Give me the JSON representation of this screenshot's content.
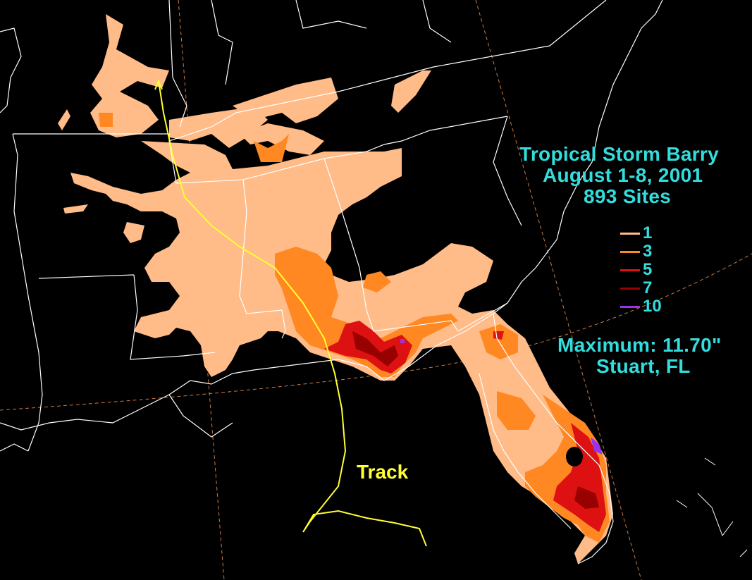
{
  "title": {
    "line1": "Tropical Storm Barry",
    "line2": "August 1-8, 2001",
    "line3": "893 Sites"
  },
  "legend": [
    {
      "label": "1",
      "color": "#ffbb88"
    },
    {
      "label": "3",
      "color": "#ff8822"
    },
    {
      "label": "5",
      "color": "#dd1111"
    },
    {
      "label": "7",
      "color": "#990000"
    },
    {
      "label": "10",
      "color": "#9933ee"
    }
  ],
  "maximum": {
    "line1": "Maximum: 11.70\"",
    "line2": "Stuart, FL"
  },
  "track_label": "Track",
  "colors": {
    "background": "#000000",
    "boundaries": "#ffffff",
    "text": "#33dddd",
    "track": "#ffff33",
    "graticule": "#ff9955"
  }
}
